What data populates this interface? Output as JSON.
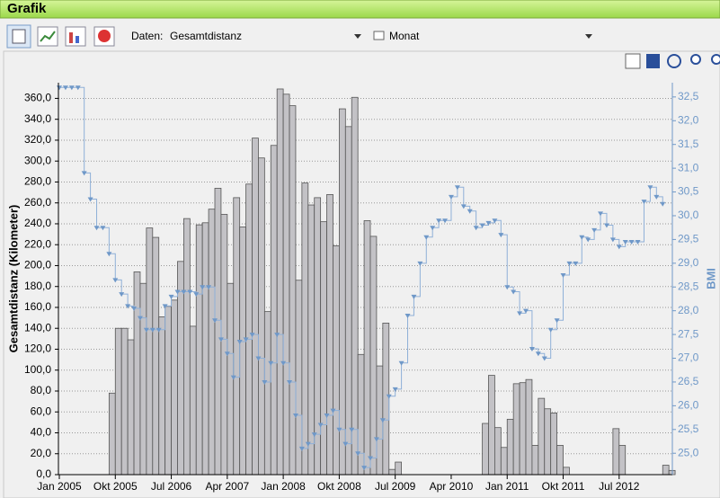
{
  "ui": {
    "title": "Grafik",
    "data_label": "Daten:",
    "data_value": "Gesamtdistanz",
    "period_value": "Monat"
  },
  "chart_data": {
    "type": "bar",
    "y_label": "Gesamtdistanz (Kilometer)",
    "y2_label": "BMI",
    "categories": [
      "Jan 2005",
      null,
      null,
      null,
      null,
      null,
      null,
      null,
      null,
      "Okt 2005",
      null,
      null,
      null,
      null,
      null,
      null,
      null,
      null,
      "Jul 2006",
      null,
      null,
      null,
      null,
      null,
      null,
      null,
      null,
      "Apr 2007",
      null,
      null,
      null,
      null,
      null,
      null,
      null,
      null,
      "Jan 2008",
      null,
      null,
      null,
      null,
      null,
      null,
      null,
      null,
      "Okt 2008",
      null,
      null,
      null,
      null,
      null,
      null,
      null,
      null,
      "Jul 2009",
      null,
      null,
      null,
      null,
      null,
      null,
      null,
      null,
      "Apr 2010",
      null,
      null,
      null,
      null,
      null,
      null,
      null,
      null,
      "Jan 2011",
      null,
      null,
      null,
      null,
      null,
      null,
      null,
      null,
      "Okt 2011",
      null,
      null,
      null,
      null,
      null,
      null,
      null,
      null,
      "Jul 2012",
      null,
      null,
      null,
      null,
      null,
      null,
      null,
      null
    ],
    "series": [
      {
        "name": "Gesamtdistanz",
        "color": "#c3c2c6",
        "values": [
          0,
          0,
          0,
          0,
          0,
          0,
          0,
          0,
          78,
          140,
          140,
          129,
          194,
          183,
          236,
          227,
          151,
          161,
          167,
          204,
          245,
          142,
          239,
          241,
          254,
          274,
          249,
          183,
          265,
          237,
          278,
          322,
          303,
          156,
          315,
          369,
          364,
          353,
          186,
          279,
          258,
          265,
          242,
          268,
          219,
          350,
          333,
          361,
          115,
          243,
          228,
          104,
          145,
          5,
          12,
          0,
          0,
          0,
          0,
          0,
          0,
          0,
          0,
          0,
          0,
          0,
          0,
          0,
          49,
          95,
          45,
          26,
          53,
          87,
          88,
          91,
          28,
          73,
          63,
          59,
          28,
          7,
          0,
          0,
          0,
          0,
          0,
          0,
          0,
          44,
          28,
          0,
          0,
          0,
          0,
          0,
          0,
          9,
          4
        ]
      },
      {
        "name": "BMI",
        "color": "#8fb0d8",
        "axis": "y2",
        "values": [
          32.7,
          32.7,
          32.7,
          32.7,
          30.9,
          30.35,
          29.75,
          29.75,
          29.2,
          28.65,
          28.35,
          28.1,
          28.05,
          27.85,
          27.6,
          27.6,
          27.6,
          28.1,
          28.3,
          28.4,
          28.4,
          28.4,
          28.35,
          28.5,
          28.5,
          27.8,
          27.4,
          27.1,
          26.6,
          27.35,
          27.4,
          27.5,
          27,
          26.5,
          26.9,
          27.5,
          26.9,
          26.5,
          25.8,
          25.1,
          25.2,
          25.4,
          25.6,
          25.8,
          25.9,
          25.5,
          25.2,
          25.5,
          25,
          24.7,
          24.9,
          25.3,
          25.7,
          26.2,
          26.35,
          26.9,
          27.9,
          28.3,
          29,
          29.55,
          29.75,
          29.9,
          29.9,
          30.4,
          30.6,
          30.2,
          30.1,
          29.75,
          29.8,
          29.85,
          29.9,
          29.6,
          28.5,
          28.4,
          27.95,
          28,
          27.2,
          27.1,
          27,
          27.6,
          27.8,
          28.75,
          29,
          29,
          29.55,
          29.5,
          29.7,
          30.05,
          29.8,
          29.5,
          29.35,
          29.45,
          29.45,
          29.45,
          30.3,
          30.6,
          30.4,
          30.25,
          null
        ]
      }
    ],
    "ylim": [
      0,
      375
    ],
    "yticks": [
      {
        "value": 0,
        "label": "0,0"
      },
      {
        "value": 20,
        "label": "20,0"
      },
      {
        "value": 40,
        "label": "40,0"
      },
      {
        "value": 60,
        "label": "60,0"
      },
      {
        "value": 80,
        "label": "80,0"
      },
      {
        "value": 100,
        "label": "100,0"
      },
      {
        "value": 120,
        "label": "120,0"
      },
      {
        "value": 140,
        "label": "140,0"
      },
      {
        "value": 160,
        "label": "160,0"
      },
      {
        "value": 180,
        "label": "180,0"
      },
      {
        "value": 200,
        "label": "200,0"
      },
      {
        "value": 220,
        "label": "220,0"
      },
      {
        "value": 240,
        "label": "240,0"
      },
      {
        "value": 260,
        "label": "260,0"
      },
      {
        "value": 280,
        "label": "280,0"
      },
      {
        "value": 300,
        "label": "300,0"
      },
      {
        "value": 320,
        "label": "320,0"
      },
      {
        "value": 340,
        "label": "340,0"
      },
      {
        "value": 360,
        "label": "360,0"
      }
    ],
    "y2lim": [
      24.55,
      32.8
    ],
    "y2ticks": [
      {
        "value": 25,
        "label": "25,0"
      },
      {
        "value": 25.5,
        "label": "25,5"
      },
      {
        "value": 26,
        "label": "26,0"
      },
      {
        "value": 26.5,
        "label": "26,5"
      },
      {
        "value": 27,
        "label": "27,0"
      },
      {
        "value": 27.5,
        "label": "27,5"
      },
      {
        "value": 28,
        "label": "28,0"
      },
      {
        "value": 28.5,
        "label": "28,5"
      },
      {
        "value": 29,
        "label": "29,0"
      },
      {
        "value": 29.5,
        "label": "29,5"
      },
      {
        "value": 30,
        "label": "30,0"
      },
      {
        "value": 30.5,
        "label": "30,5"
      },
      {
        "value": 31,
        "label": "31,0"
      },
      {
        "value": 31.5,
        "label": "31,5"
      },
      {
        "value": 32,
        "label": "32,0"
      },
      {
        "value": 32.5,
        "label": "32,5"
      }
    ],
    "grid": true
  }
}
